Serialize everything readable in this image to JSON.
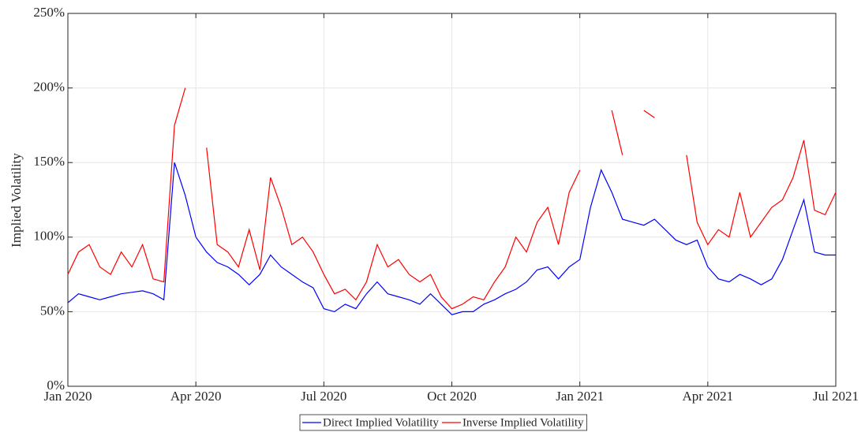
{
  "chart_data": {
    "type": "line",
    "y_label": "Implied Volatility",
    "x": [
      0,
      0.25,
      0.5,
      0.75,
      1,
      1.25,
      1.5,
      1.75,
      2,
      2.25,
      2.5,
      2.75,
      3,
      3.25,
      3.5,
      3.75,
      4,
      4.25,
      4.5,
      4.75,
      5,
      5.25,
      5.5,
      5.75,
      6,
      6.25,
      6.5,
      6.75,
      7,
      7.25,
      7.5,
      7.75,
      8,
      8.25,
      8.5,
      8.75,
      9,
      9.25,
      9.5,
      9.75,
      10,
      10.25,
      10.5,
      10.75,
      11,
      11.25,
      11.5,
      11.75,
      12,
      12.25,
      12.5,
      12.75,
      13,
      13.25,
      13.5,
      13.75,
      14,
      14.25,
      14.5,
      14.75,
      15,
      15.25,
      15.5,
      15.75,
      16,
      16.25,
      16.5,
      16.75,
      17,
      17.25,
      17.5,
      17.75,
      18
    ],
    "series": [
      {
        "name": "Direct Implied Volatility",
        "color": "#0000ff",
        "values": [
          56,
          62,
          60,
          58,
          60,
          62,
          63,
          64,
          62,
          58,
          150,
          128,
          100,
          90,
          83,
          80,
          75,
          68,
          75,
          88,
          80,
          75,
          70,
          66,
          52,
          50,
          55,
          52,
          62,
          70,
          62,
          60,
          58,
          55,
          62,
          55,
          48,
          50,
          50,
          55,
          58,
          62,
          65,
          70,
          78,
          80,
          72,
          80,
          85,
          120,
          145,
          130,
          112,
          110,
          108,
          112,
          105,
          98,
          95,
          98,
          80,
          72,
          70,
          75,
          72,
          68,
          72,
          85,
          105,
          125,
          90,
          88,
          88
        ]
      },
      {
        "name": "Inverse Implied Volatility",
        "color": "#ff0000",
        "values": [
          75,
          90,
          95,
          80,
          75,
          90,
          80,
          95,
          72,
          70,
          175,
          200,
          null,
          160,
          95,
          90,
          80,
          105,
          78,
          140,
          120,
          95,
          100,
          90,
          75,
          62,
          65,
          58,
          70,
          95,
          80,
          85,
          75,
          70,
          75,
          60,
          52,
          55,
          60,
          58,
          70,
          80,
          100,
          90,
          110,
          120,
          95,
          130,
          145,
          null,
          null,
          185,
          155,
          null,
          185,
          180,
          null,
          null,
          155,
          110,
          95,
          105,
          100,
          130,
          100,
          110,
          120,
          125,
          140,
          165,
          118,
          115,
          130
        ]
      }
    ],
    "xlim": [
      0,
      18
    ],
    "xticks": [
      {
        "value": 0,
        "label": "Jan 2020"
      },
      {
        "value": 3,
        "label": "Apr 2020"
      },
      {
        "value": 6,
        "label": "Jul 2020"
      },
      {
        "value": 9,
        "label": "Oct 2020"
      },
      {
        "value": 12,
        "label": "Jan 2021"
      },
      {
        "value": 15,
        "label": "Apr 2021"
      },
      {
        "value": 18,
        "label": "Jul 2021"
      }
    ],
    "ylim": [
      0,
      250
    ],
    "yticks": [
      {
        "value": 0,
        "label": "0%"
      },
      {
        "value": 50,
        "label": "50%"
      },
      {
        "value": 100,
        "label": "100%"
      },
      {
        "value": 150,
        "label": "150%"
      },
      {
        "value": 200,
        "label": "200%"
      },
      {
        "value": 250,
        "label": "250%"
      }
    ],
    "grid": true,
    "legend": "bottom"
  }
}
